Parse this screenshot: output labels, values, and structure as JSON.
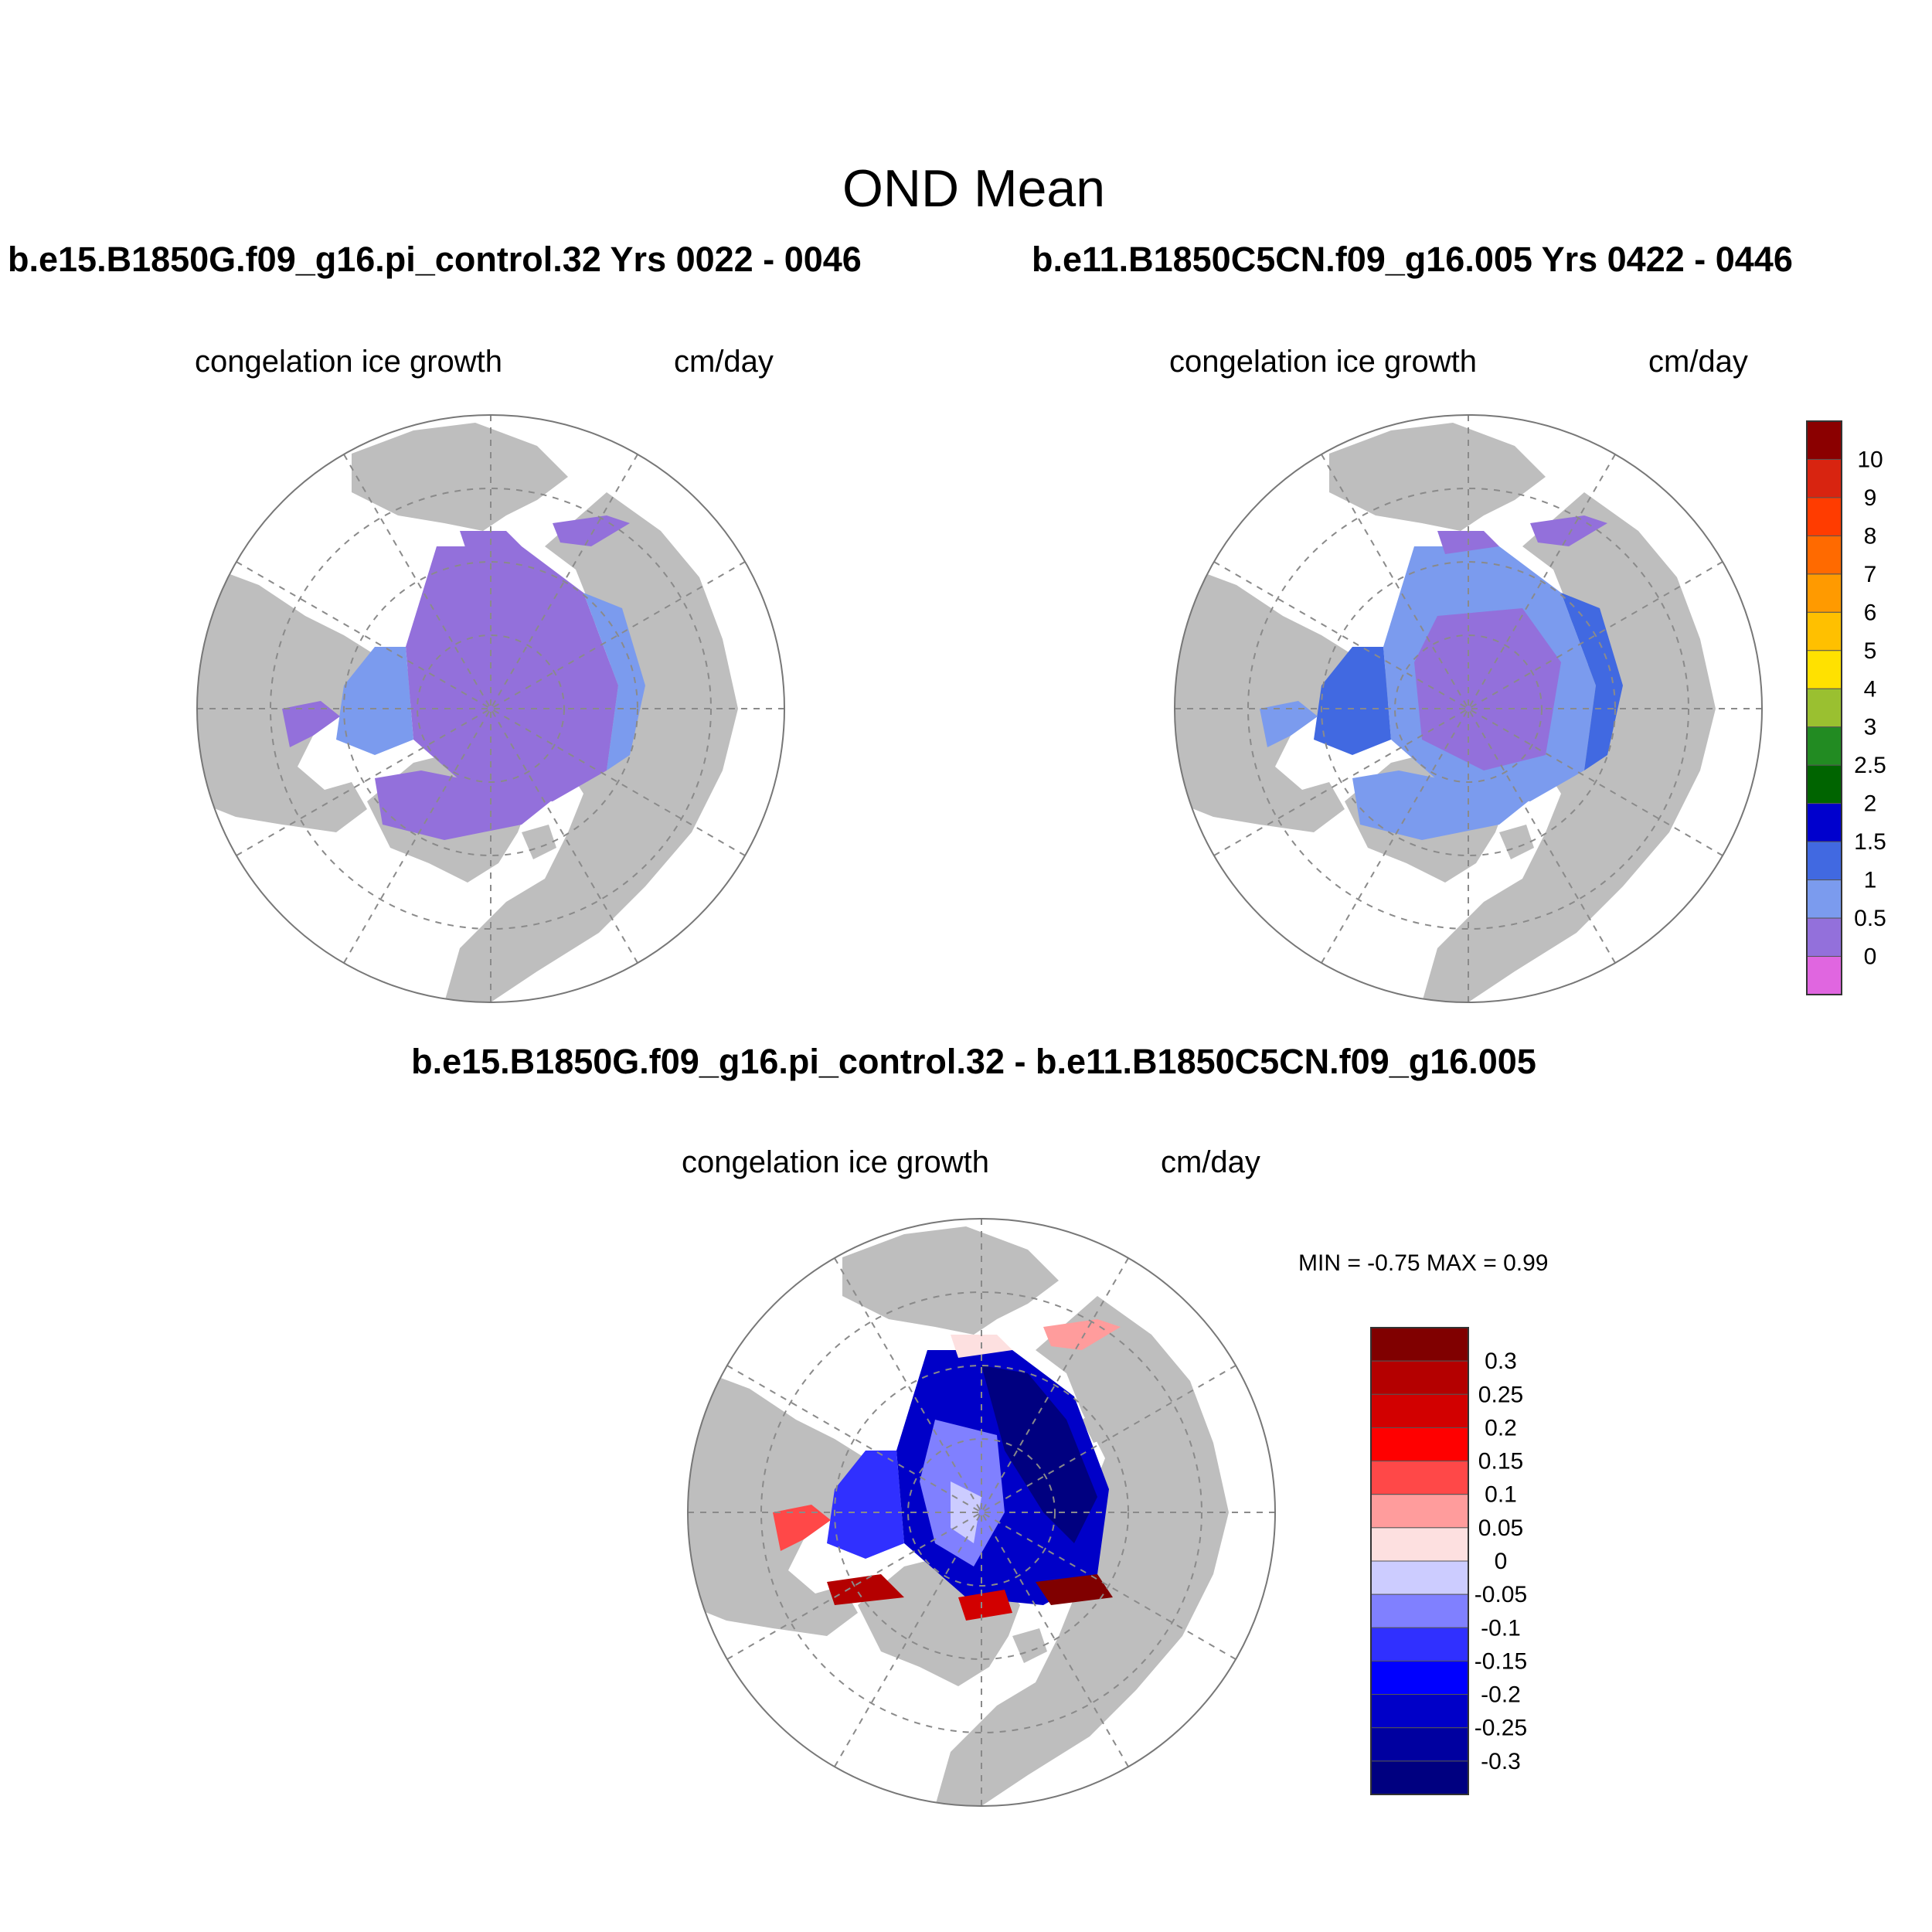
{
  "main_title": "OND Mean",
  "panels": [
    {
      "title": "b.e15.B1850G.f09_g16.pi_control.32  Yrs 0022 - 0046",
      "variable": "congelation ice growth",
      "units": "cm/day"
    },
    {
      "title": "b.e11.B1850C5CN.f09_g16.005  Yrs 0422 - 0446",
      "variable": "congelation ice growth",
      "units": "cm/day"
    }
  ],
  "difference": {
    "title": "b.e15.B1850G.f09_g16.pi_control.32 - b.e11.B1850C5CN.f09_g16.005",
    "variable": "congelation ice growth",
    "units": "cm/day",
    "minmax": "MIN =  -0.75 MAX =   0.99"
  },
  "chart_data": {
    "type": "heatmap",
    "projection": "north-polar-stereographic",
    "land_color": "#bebebe",
    "ocean_color": "#ffffff",
    "grid": true,
    "main_colorbar": {
      "labels": [
        "10",
        "9",
        "8",
        "7",
        "6",
        "5",
        "4",
        "3",
        "2.5",
        "2",
        "1.5",
        "1",
        "0.5",
        "0"
      ],
      "colors": [
        "#8b0000",
        "#d82410",
        "#ff3c00",
        "#ff6a00",
        "#ff9a00",
        "#ffc000",
        "#ffe100",
        "#9ac030",
        "#228b22",
        "#006400",
        "#0000cd",
        "#4169e1",
        "#7b9bee",
        "#9370db",
        "#e066e0"
      ]
    },
    "diff_colorbar": {
      "labels": [
        "0.3",
        "0.25",
        "0.2",
        "0.15",
        "0.1",
        "0.05",
        "0",
        "-0.05",
        "-0.1",
        "-0.15",
        "-0.2",
        "-0.25",
        "-0.3"
      ],
      "colors": [
        "#800000",
        "#b40000",
        "#d20000",
        "#ff0000",
        "#ff4848",
        "#ff9c9c",
        "#fde0e0",
        "#ccccff",
        "#8080ff",
        "#3030ff",
        "#0000ff",
        "#0000c8",
        "#0000a0",
        "#000080"
      ]
    }
  }
}
